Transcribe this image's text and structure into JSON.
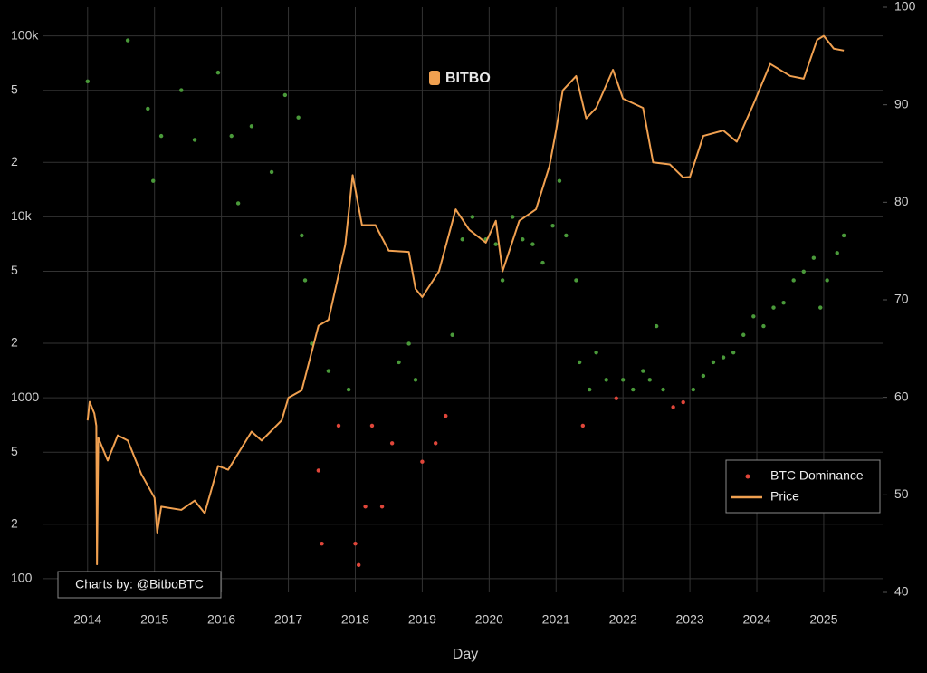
{
  "chart_data": {
    "type": "line",
    "x_label": "Day",
    "watermark": "BITBO",
    "credit": "Charts by: @BitboBTC",
    "xlim": [
      2013.34,
      2025.88
    ],
    "xticks": [
      2014,
      2015,
      2016,
      2017,
      2018,
      2019,
      2020,
      2021,
      2022,
      2023,
      2024,
      2025
    ],
    "log_y": true,
    "ylim": [
      84,
      144000
    ],
    "yticks": [
      {
        "value": 100000,
        "label": "100k"
      },
      {
        "value": 50000,
        "label": "5"
      },
      {
        "value": 20000,
        "label": "2"
      },
      {
        "value": 10000,
        "label": "10k"
      },
      {
        "value": 5000,
        "label": "5"
      },
      {
        "value": 2000,
        "label": "2"
      },
      1000,
      {
        "value": 500,
        "label": "5"
      },
      {
        "value": 200,
        "label": "2"
      },
      100
    ],
    "y2lim": [
      40,
      100
    ],
    "y2ticks": [
      40,
      50,
      60,
      70,
      80,
      90,
      100
    ],
    "grid": true,
    "legend": "lower-right",
    "series": [
      {
        "name": "BTC Dominance",
        "type": "scatter",
        "axis": "y2",
        "color": "#e0463a",
        "color_above": "#4a9a3a",
        "threshold": 60,
        "x": [
          2014.0,
          2014.6,
          2014.9,
          2014.98,
          2015.1,
          2015.4,
          2015.6,
          2015.95,
          2016.15,
          2016.25,
          2016.45,
          2016.75,
          2016.95,
          2017.15,
          2017.2,
          2017.25,
          2017.35,
          2017.45,
          2017.5,
          2017.6,
          2017.75,
          2017.9,
          2018.0,
          2018.05,
          2018.15,
          2018.25,
          2018.4,
          2018.55,
          2018.65,
          2018.8,
          2018.9,
          2019.0,
          2019.2,
          2019.35,
          2019.45,
          2019.6,
          2019.75,
          2019.95,
          2020.1,
          2020.2,
          2020.35,
          2020.5,
          2020.65,
          2020.8,
          2020.95,
          2021.05,
          2021.15,
          2021.3,
          2021.35,
          2021.4,
          2021.5,
          2021.6,
          2021.75,
          2021.9,
          2022.0,
          2022.15,
          2022.3,
          2022.4,
          2022.5,
          2022.6,
          2022.75,
          2022.9,
          2023.05,
          2023.2,
          2023.35,
          2023.5,
          2023.65,
          2023.8,
          2023.95,
          2024.1,
          2024.25,
          2024.4,
          2024.55,
          2024.7,
          2024.85,
          2024.95,
          2025.05,
          2025.2,
          2025.3
        ],
        "values": [
          92.4,
          96.6,
          89.6,
          82.2,
          86.8,
          91.5,
          86.4,
          93.3,
          86.8,
          79.9,
          87.8,
          83.1,
          91,
          88.7,
          76.6,
          72,
          65.5,
          52.5,
          45,
          62.7,
          57.1,
          60.8,
          45,
          42.8,
          48.8,
          57.1,
          48.8,
          55.3,
          63.6,
          65.5,
          61.8,
          53.4,
          55.3,
          58.1,
          66.4,
          76.2,
          78.5,
          76.2,
          75.7,
          72,
          78.5,
          76.2,
          75.7,
          73.8,
          77.6,
          82.2,
          76.6,
          72,
          63.6,
          57.1,
          60.8,
          64.6,
          61.8,
          59.9,
          61.8,
          60.8,
          62.7,
          61.8,
          67.3,
          60.8,
          59,
          59.5,
          60.8,
          62.2,
          63.6,
          64.1,
          64.6,
          66.4,
          68.3,
          67.3,
          69.2,
          69.7,
          72,
          72.9,
          74.3,
          69.2,
          72,
          74.8,
          76.6
        ]
      },
      {
        "name": "Price",
        "type": "line",
        "axis": "y",
        "color": "#f0a050",
        "x": [
          2014.0,
          2014.03,
          2014.1,
          2014.13,
          2014.14,
          2014.16,
          2014.3,
          2014.45,
          2014.6,
          2014.8,
          2015.0,
          2015.04,
          2015.1,
          2015.4,
          2015.6,
          2015.75,
          2015.95,
          2016.1,
          2016.45,
          2016.6,
          2016.9,
          2017.0,
          2017.2,
          2017.45,
          2017.6,
          2017.85,
          2017.96,
          2018.1,
          2018.3,
          2018.5,
          2018.8,
          2018.9,
          2019.0,
          2019.25,
          2019.5,
          2019.7,
          2019.95,
          2020.1,
          2020.2,
          2020.45,
          2020.7,
          2020.9,
          2021.0,
          2021.1,
          2021.3,
          2021.45,
          2021.6,
          2021.85,
          2022.0,
          2022.3,
          2022.45,
          2022.7,
          2022.9,
          2023.0,
          2023.2,
          2023.5,
          2023.7,
          2023.95,
          2024.2,
          2024.5,
          2024.7,
          2024.9,
          2025.0,
          2025.15,
          2025.3
        ],
        "values": [
          750,
          950,
          820,
          700,
          120,
          600,
          450,
          620,
          580,
          380,
          280,
          180,
          250,
          240,
          270,
          230,
          420,
          400,
          650,
          580,
          750,
          1000,
          1100,
          2500,
          2700,
          7000,
          17000,
          9000,
          9000,
          6500,
          6400,
          4000,
          3600,
          5000,
          11000,
          8500,
          7200,
          9500,
          5000,
          9500,
          11000,
          19000,
          30000,
          50000,
          60000,
          35000,
          40000,
          65000,
          45000,
          40000,
          20000,
          19500,
          16500,
          16600,
          28000,
          30000,
          26000,
          42000,
          70000,
          60000,
          58000,
          95000,
          100000,
          85000,
          83000
        ]
      }
    ]
  }
}
